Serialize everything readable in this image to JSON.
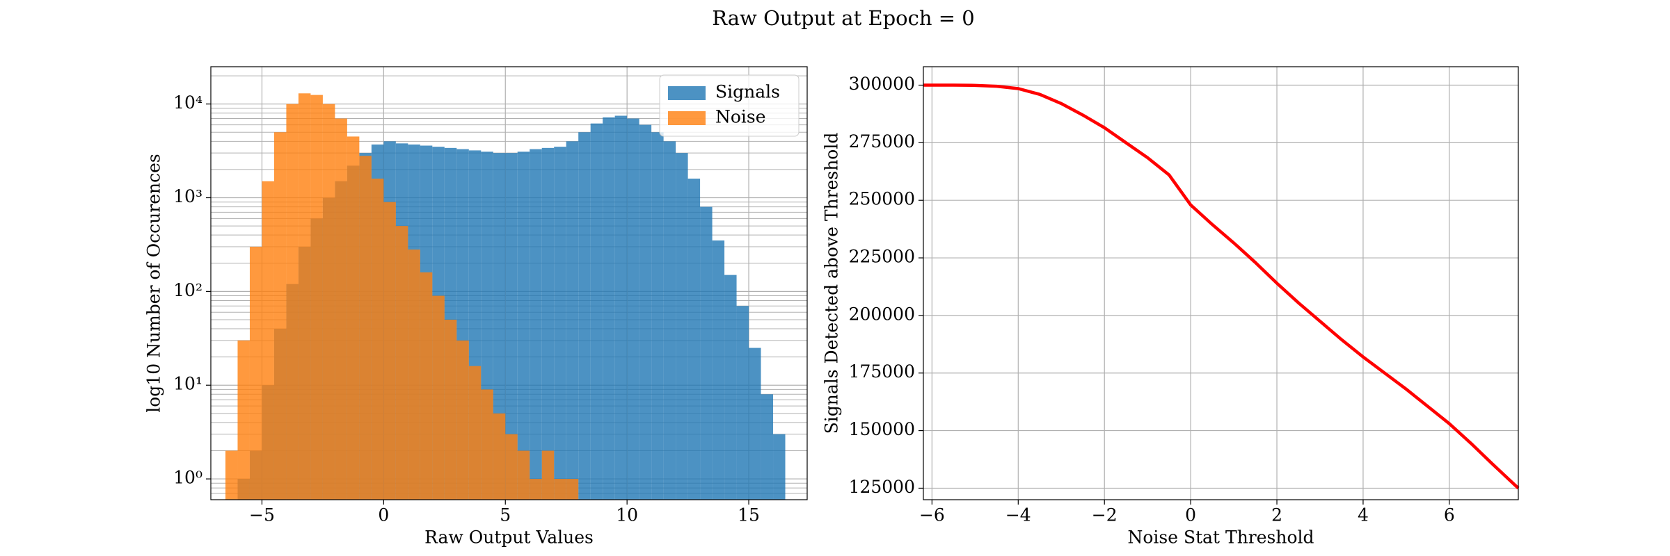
{
  "title": "Raw Output at Epoch = 0",
  "chart_data": [
    {
      "type": "histogram",
      "xlabel": "Raw Output Values",
      "ylabel": "log10 Number of Occurences",
      "log_y": true,
      "grid": true,
      "legend": "upper right",
      "xlim": [
        -7.1,
        17.4
      ],
      "ylim": [
        0.6,
        25000
      ],
      "xticks": [
        {
          "value": -5,
          "label": "−5"
        },
        0,
        5,
        10,
        15
      ],
      "yticks": [
        {
          "value": 1,
          "label": "10⁰"
        },
        {
          "value": 10,
          "label": "10¹"
        },
        {
          "value": 100,
          "label": "10²"
        },
        {
          "value": 1000,
          "label": "10³"
        },
        {
          "value": 10000,
          "label": "10⁴"
        }
      ],
      "series": [
        {
          "name": "Signals",
          "color": "#1f77b4",
          "bins": [
            -6,
            -5.5,
            -5,
            -4.5,
            -4,
            -3.5,
            -3,
            -2.5,
            -2,
            -1.5,
            -1,
            -0.5,
            0,
            0.5,
            1,
            1.5,
            2,
            2.5,
            3,
            3.5,
            4,
            4.5,
            5,
            5.5,
            6,
            6.5,
            7,
            7.5,
            8,
            8.5,
            9,
            9.5,
            10,
            10.5,
            11,
            11.5,
            12,
            12.5,
            13,
            13.5,
            14,
            14.5,
            15,
            15.5,
            16,
            16.5
          ],
          "values": [
            1,
            2,
            10,
            40,
            120,
            300,
            600,
            1000,
            1500,
            2200,
            3000,
            3700,
            4000,
            3800,
            3700,
            3600,
            3500,
            3400,
            3300,
            3200,
            3100,
            3000,
            3000,
            3100,
            3300,
            3400,
            3500,
            4000,
            5000,
            6200,
            7200,
            7500,
            7000,
            6000,
            5000,
            4000,
            3000,
            1600,
            800,
            350,
            150,
            70,
            25,
            8,
            3
          ]
        },
        {
          "name": "Noise",
          "color": "#ff7f0e",
          "bins": [
            -6.5,
            -6,
            -5.5,
            -5,
            -4.5,
            -4,
            -3.5,
            -3,
            -2.5,
            -2,
            -1.5,
            -1,
            -0.5,
            0,
            0.5,
            1,
            1.5,
            2,
            2.5,
            3,
            3.5,
            4,
            4.5,
            5,
            5.5,
            6,
            6.5,
            7,
            7.5,
            8
          ],
          "values": [
            2,
            30,
            300,
            1500,
            5000,
            10000,
            13000,
            12500,
            10000,
            7000,
            4500,
            2800,
            1600,
            900,
            500,
            280,
            160,
            90,
            50,
            30,
            16,
            9,
            5,
            3,
            2,
            1,
            2,
            1,
            1
          ]
        }
      ]
    },
    {
      "type": "line",
      "xlabel": "Noise Stat Threshold",
      "ylabel": "Signals Detected above Threshold",
      "grid": true,
      "xlim": [
        -6.2,
        7.6
      ],
      "ylim": [
        120000,
        308000
      ],
      "xticks": [
        {
          "value": -6,
          "label": "−6"
        },
        {
          "value": -4,
          "label": "−4"
        },
        {
          "value": -2,
          "label": "−2"
        },
        0,
        2,
        4,
        6
      ],
      "yticks": [
        125000,
        150000,
        175000,
        200000,
        225000,
        250000,
        275000,
        300000
      ],
      "x": [
        -6.2,
        -5.5,
        -5,
        -4.5,
        -4,
        -3.5,
        -3,
        -2.5,
        -2,
        -1.5,
        -1,
        -0.5,
        0,
        0.5,
        1,
        1.5,
        2,
        2.5,
        3,
        3.5,
        4,
        4.5,
        5,
        5.5,
        6,
        6.5,
        7,
        7.6
      ],
      "series": [
        {
          "color": "#ff0000",
          "values": [
            300000,
            300000,
            299900,
            299500,
            298500,
            296000,
            292000,
            287000,
            281500,
            275000,
            268500,
            261000,
            248000,
            239500,
            231500,
            223000,
            214000,
            205500,
            197500,
            189500,
            182000,
            175000,
            168000,
            160500,
            153000,
            144500,
            135500,
            125000
          ]
        }
      ]
    }
  ]
}
